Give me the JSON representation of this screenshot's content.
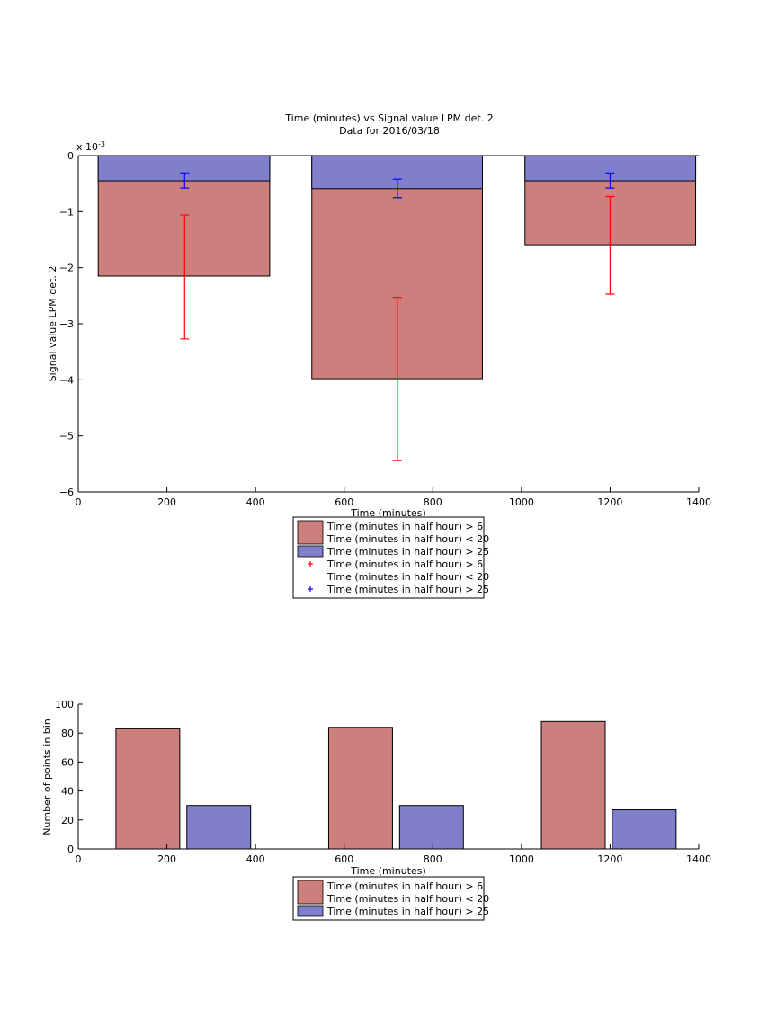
{
  "colors": {
    "red_bar": "#cc7f7c",
    "blue_bar": "#7f7fcc",
    "red_err": "#ff0000",
    "blue_err": "#0000ff",
    "axis": "#000000"
  },
  "chart_data": [
    {
      "type": "bar",
      "title": "Time (minutes) vs Signal value LPM det. 2",
      "subtitle": "Data for 2016/03/18",
      "xlabel": "Time (minutes)",
      "ylabel": "Signal value LPM det. 2",
      "exponent_label": "x 10",
      "exponent_power": "-3",
      "xlim": [
        0,
        1400
      ],
      "ylim": [
        -6,
        0
      ],
      "xticks": [
        "0",
        "200",
        "400",
        "600",
        "800",
        "1000",
        "1200",
        "1400"
      ],
      "yticks": [
        "0",
        "−1",
        "−2",
        "−3",
        "−4",
        "−5",
        "−6"
      ],
      "bar_edges": [
        [
          45,
          432
        ],
        [
          527,
          912
        ],
        [
          1008,
          1393
        ]
      ],
      "centers": [
        240,
        720,
        1200
      ],
      "series": [
        {
          "name": "Time (minutes in half hour) > 6 Time (minutes in half hour) < 20",
          "color": "#cc7f7c",
          "values": [
            -2.15,
            -3.98,
            -1.59
          ]
        },
        {
          "name": "Time (minutes in half hour) > 25",
          "color": "#7f7fcc",
          "values": [
            -0.45,
            -0.59,
            -0.45
          ]
        }
      ],
      "errorbars": [
        {
          "name": "Time (minutes in half hour) > 6 Time (minutes in half hour) < 20",
          "color": "#ff0000",
          "low": [
            -3.27,
            -5.44,
            -2.47
          ],
          "high": [
            -1.06,
            -2.53,
            -0.73
          ]
        },
        {
          "name": "Time (minutes in half hour) > 25",
          "color": "#0000ff",
          "low": [
            -0.58,
            -0.75,
            -0.58
          ],
          "high": [
            -0.31,
            -0.42,
            -0.31
          ]
        }
      ],
      "legend": [
        {
          "kind": "patch",
          "color": "#cc7f7c",
          "lines": [
            "Time (minutes in half hour) > 6",
            "Time (minutes in half hour) < 20"
          ]
        },
        {
          "kind": "patch",
          "color": "#7f7fcc",
          "lines": [
            "Time (minutes in half hour) > 25"
          ]
        },
        {
          "kind": "marker",
          "color": "#ff0000",
          "lines": [
            "Time (minutes in half hour) > 6",
            "Time (minutes in half hour) < 20"
          ]
        },
        {
          "kind": "marker",
          "color": "#0000ff",
          "lines": [
            "Time (minutes in half hour) > 25"
          ]
        }
      ],
      "legend_position": "below"
    },
    {
      "type": "bar",
      "xlabel": "Time (minutes)",
      "ylabel": "Number of points in bin",
      "xlim": [
        0,
        1400
      ],
      "ylim": [
        0,
        100
      ],
      "xticks": [
        "0",
        "200",
        "400",
        "600",
        "800",
        "1000",
        "1200",
        "1400"
      ],
      "yticks": [
        "0",
        "20",
        "40",
        "60",
        "80",
        "100"
      ],
      "series": [
        {
          "name": "Time (minutes in half hour) > 6 Time (minutes in half hour) < 20",
          "color": "#cc7f7c",
          "bars": [
            [
              85,
              229
            ],
            [
              565,
              709
            ],
            [
              1045,
              1189
            ]
          ],
          "values": [
            83,
            84,
            88
          ]
        },
        {
          "name": "Time (minutes in half hour) > 25",
          "color": "#7f7fcc",
          "bars": [
            [
              245,
              389
            ],
            [
              725,
              869
            ],
            [
              1205,
              1349
            ]
          ],
          "values": [
            30,
            30,
            27
          ]
        }
      ],
      "legend": [
        {
          "kind": "patch",
          "color": "#cc7f7c",
          "lines": [
            "Time (minutes in half hour) > 6",
            "Time (minutes in half hour) < 20"
          ]
        },
        {
          "kind": "patch",
          "color": "#7f7fcc",
          "lines": [
            "Time (minutes in half hour) > 25"
          ]
        }
      ],
      "legend_position": "below"
    }
  ]
}
